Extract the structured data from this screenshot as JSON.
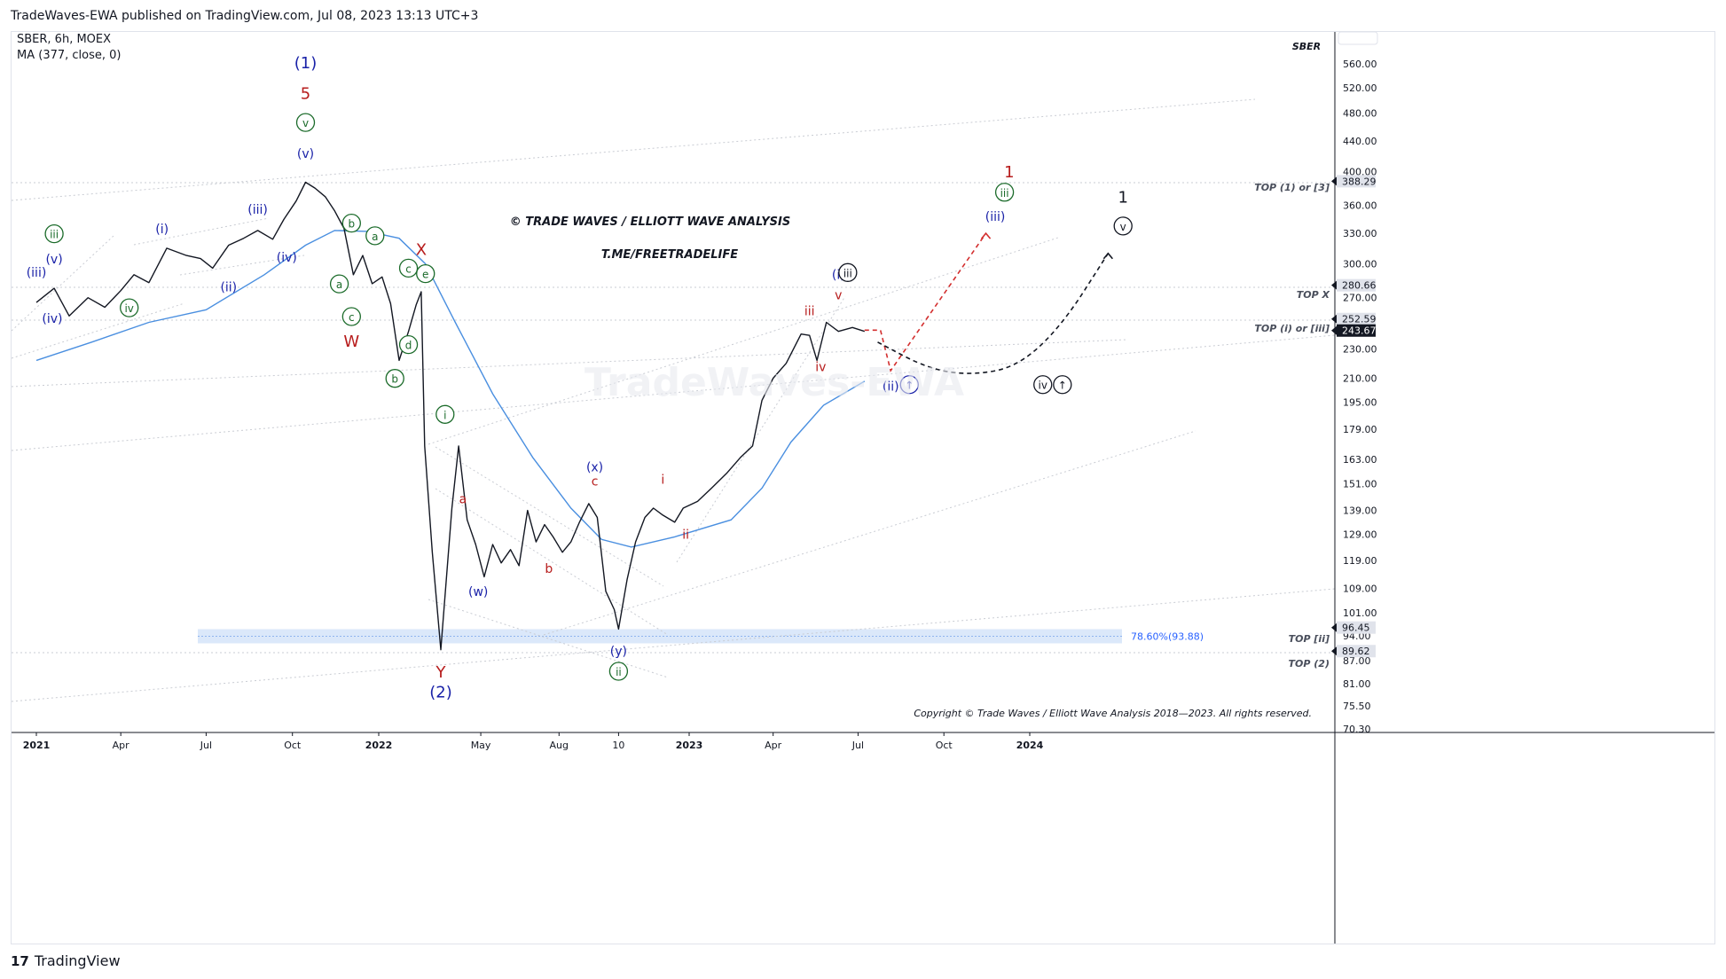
{
  "header": {
    "published": "TradeWaves-EWA published on TradingView.com, Jul 08, 2023 13:13 UTC+3"
  },
  "footer": {
    "brand": "TradingView",
    "logo": "17"
  },
  "legend": {
    "symbol": "SBER, 6h, MOEX",
    "ma": "MA (377, close, 0)",
    "corner": "SBER"
  },
  "watermark": {
    "title": "© TRADE WAVES / ELLIOTT WAVE ANALYSIS",
    "link": "T.ME/FREETRADELIFE",
    "faint": "TradeWaves-EWA"
  },
  "copyright": "Copyright © Trade Waves / Elliott Wave Analysis 2018—2023. All rights reserved.",
  "colors": {
    "blue": "#1a22a8",
    "green": "#1b6b2a",
    "red": "#b71c1c",
    "black": "#131722",
    "ma": "#4a8fe0",
    "grid": "#c9ccd3",
    "zone": "#cfe0f8"
  },
  "chart_data": {
    "type": "line",
    "title": "SBER, 6h, MOEX",
    "x_ticks": [
      "2021",
      "Apr",
      "Jul",
      "Oct",
      "2022",
      "May",
      "Aug",
      "10",
      "2023",
      "Apr",
      "Jul",
      "Oct",
      "2024"
    ],
    "y_ticks": [
      "560.00",
      "520.00",
      "480.00",
      "440.00",
      "400.00",
      "360.00",
      "330.00",
      "300.00",
      "270.00",
      "230.00",
      "210.00",
      "195.00",
      "179.00",
      "163.00",
      "151.00",
      "139.00",
      "129.00",
      "119.00",
      "109.00",
      "101.00",
      "94.00",
      "87.00",
      "81.00",
      "75.50",
      "70.30"
    ],
    "y_range": [
      70.3,
      600
    ],
    "price_tags": [
      {
        "value": "388.29",
        "price": 388.29,
        "style": "light"
      },
      {
        "value": "280.66",
        "price": 280.66,
        "style": "light"
      },
      {
        "value": "252.59",
        "price": 252.59,
        "style": "light"
      },
      {
        "value": "243.67",
        "price": 243.67,
        "style": "dark"
      },
      {
        "value": "96.45",
        "price": 96.45,
        "style": "light"
      },
      {
        "value": "89.62",
        "price": 89.62,
        "style": "light"
      }
    ],
    "level_labels": [
      {
        "text": "TOP (1) or [3]",
        "price": 380
      },
      {
        "text": "TOP X",
        "price": 272
      },
      {
        "text": "TOP (i) or [iii]",
        "price": 245
      },
      {
        "text": "TOP [ii]",
        "price": 93
      },
      {
        "text": "TOP (2)",
        "price": 86
      }
    ],
    "fib": {
      "label": "78.60%(93.88)",
      "price": 93.88
    },
    "price_series": {
      "name": "SBER",
      "points": [
        [
          "2021-01-01",
          266
        ],
        [
          "2021-01-20",
          278
        ],
        [
          "2021-02-05",
          255
        ],
        [
          "2021-02-25",
          270
        ],
        [
          "2021-03-15",
          262
        ],
        [
          "2021-04-01",
          276
        ],
        [
          "2021-04-15",
          290
        ],
        [
          "2021-05-01",
          283
        ],
        [
          "2021-05-20",
          315
        ],
        [
          "2021-06-10",
          308
        ],
        [
          "2021-06-25",
          305
        ],
        [
          "2021-07-08",
          296
        ],
        [
          "2021-07-25",
          318
        ],
        [
          "2021-08-10",
          325
        ],
        [
          "2021-08-25",
          333
        ],
        [
          "2021-09-10",
          324
        ],
        [
          "2021-09-22",
          345
        ],
        [
          "2021-10-05",
          365
        ],
        [
          "2021-10-15",
          387
        ],
        [
          "2021-10-25",
          380
        ],
        [
          "2021-11-05",
          370
        ],
        [
          "2021-11-15",
          354
        ],
        [
          "2021-11-25",
          335
        ],
        [
          "2021-12-05",
          290
        ],
        [
          "2021-12-15",
          308
        ],
        [
          "2021-12-25",
          282
        ],
        [
          "2022-01-05",
          288
        ],
        [
          "2022-01-15",
          265
        ],
        [
          "2022-01-25",
          222
        ],
        [
          "2022-02-05",
          243
        ],
        [
          "2022-02-14",
          264
        ],
        [
          "2022-02-20",
          275
        ],
        [
          "2022-02-24",
          170
        ],
        [
          "2022-03-05",
          122
        ],
        [
          "2022-03-15",
          90
        ],
        [
          "2022-03-28",
          140
        ],
        [
          "2022-04-05",
          170
        ],
        [
          "2022-04-15",
          135
        ],
        [
          "2022-04-25",
          125
        ],
        [
          "2022-05-05",
          113
        ],
        [
          "2022-05-15",
          125
        ],
        [
          "2022-05-25",
          118
        ],
        [
          "2022-06-05",
          123
        ],
        [
          "2022-06-15",
          117
        ],
        [
          "2022-06-25",
          139
        ],
        [
          "2022-07-05",
          126
        ],
        [
          "2022-07-15",
          133
        ],
        [
          "2022-07-25",
          128
        ],
        [
          "2022-08-05",
          122
        ],
        [
          "2022-08-15",
          126
        ],
        [
          "2022-08-25",
          134
        ],
        [
          "2022-09-05",
          142
        ],
        [
          "2022-09-15",
          136
        ],
        [
          "2022-09-25",
          108
        ],
        [
          "2022-10-05",
          102
        ],
        [
          "2022-10-10",
          96
        ],
        [
          "2022-10-20",
          112
        ],
        [
          "2022-10-30",
          126
        ],
        [
          "2022-11-10",
          136
        ],
        [
          "2022-11-20",
          140
        ],
        [
          "2022-12-01",
          137
        ],
        [
          "2022-12-15",
          134
        ],
        [
          "2022-12-25",
          140
        ],
        [
          "2023-01-10",
          143
        ],
        [
          "2023-01-25",
          149
        ],
        [
          "2023-02-10",
          156
        ],
        [
          "2023-02-25",
          164
        ],
        [
          "2023-03-10",
          170
        ],
        [
          "2023-03-20",
          196
        ],
        [
          "2023-04-01",
          210
        ],
        [
          "2023-04-15",
          220
        ],
        [
          "2023-05-01",
          241
        ],
        [
          "2023-05-10",
          240
        ],
        [
          "2023-05-18",
          222
        ],
        [
          "2023-05-28",
          250
        ],
        [
          "2023-06-10",
          243
        ],
        [
          "2023-06-25",
          246
        ],
        [
          "2023-07-08",
          243
        ]
      ]
    },
    "ma_series": {
      "name": "MA (377, close, 0)",
      "points": [
        [
          "2021-01-01",
          222
        ],
        [
          "2021-03-01",
          235
        ],
        [
          "2021-05-01",
          250
        ],
        [
          "2021-07-01",
          260
        ],
        [
          "2021-09-01",
          290
        ],
        [
          "2021-10-15",
          318
        ],
        [
          "2021-11-15",
          333
        ],
        [
          "2021-12-20",
          332
        ],
        [
          "2022-01-25",
          325
        ],
        [
          "2022-02-25",
          300
        ],
        [
          "2022-04-01",
          250
        ],
        [
          "2022-05-15",
          200
        ],
        [
          "2022-07-01",
          164
        ],
        [
          "2022-08-15",
          140
        ],
        [
          "2022-09-20",
          127
        ],
        [
          "2022-10-25",
          124
        ],
        [
          "2022-12-15",
          128
        ],
        [
          "2023-02-15",
          135
        ],
        [
          "2023-03-20",
          149
        ],
        [
          "2023-04-20",
          172
        ],
        [
          "2023-05-25",
          193
        ],
        [
          "2023-07-08",
          208
        ]
      ]
    },
    "projections": [
      {
        "name": "red-path",
        "color": "#d32f2f",
        "points": [
          [
            "2023-07-08",
            244
          ],
          [
            "2023-07-25",
            244
          ],
          [
            "2023-08-05",
            215
          ],
          [
            "2023-11-15",
            330
          ]
        ]
      },
      {
        "name": "black-path",
        "color": "#131722",
        "points": [
          [
            "2023-07-22",
            235
          ],
          [
            "2023-09-15",
            216
          ],
          [
            "2023-11-01",
            212
          ],
          [
            "2023-12-20",
            218
          ],
          [
            "2024-02-05",
            248
          ],
          [
            "2024-03-25",
            310
          ]
        ]
      }
    ],
    "wave_labels": [
      {
        "t": "(1)",
        "c": "blue",
        "d": "2021-10-15",
        "p": 555
      },
      {
        "t": "5",
        "c": "red",
        "d": "2021-10-15",
        "p": 505
      },
      {
        "t": "v",
        "c": "green",
        "d": "2021-10-15",
        "p": 460,
        "circle": true
      },
      {
        "t": "(v)",
        "c": "blue",
        "d": "2021-10-15",
        "p": 420
      },
      {
        "t": "(iii)",
        "c": "blue",
        "d": "2021-01-01",
        "p": 290
      },
      {
        "t": "iii",
        "c": "green",
        "d": "2021-01-20",
        "p": 325,
        "circle": true
      },
      {
        "t": "(v)",
        "c": "blue",
        "d": "2021-01-20",
        "p": 302
      },
      {
        "t": "(iv)",
        "c": "blue",
        "d": "2021-01-18",
        "p": 251
      },
      {
        "t": "iv",
        "c": "green",
        "d": "2021-04-10",
        "p": 258,
        "circle": true
      },
      {
        "t": "(i)",
        "c": "blue",
        "d": "2021-05-15",
        "p": 332
      },
      {
        "t": "(ii)",
        "c": "blue",
        "d": "2021-07-25",
        "p": 277
      },
      {
        "t": "(iii)",
        "c": "blue",
        "d": "2021-08-25",
        "p": 353
      },
      {
        "t": "(iv)",
        "c": "blue",
        "d": "2021-09-25",
        "p": 304
      },
      {
        "t": "b",
        "c": "green",
        "d": "2021-12-03",
        "p": 336,
        "circle": true
      },
      {
        "t": "a",
        "c": "green",
        "d": "2021-12-28",
        "p": 323,
        "circle": true
      },
      {
        "t": "a",
        "c": "green",
        "d": "2021-11-20",
        "p": 278,
        "circle": true
      },
      {
        "t": "c",
        "c": "green",
        "d": "2021-12-03",
        "p": 251,
        "circle": true
      },
      {
        "t": "W",
        "c": "red",
        "d": "2021-12-03",
        "p": 233
      },
      {
        "t": "X",
        "c": "red",
        "d": "2022-02-20",
        "p": 310
      },
      {
        "t": "c",
        "c": "green",
        "d": "2022-02-05",
        "p": 292,
        "circle": true
      },
      {
        "t": "e",
        "c": "green",
        "d": "2022-02-25",
        "p": 287,
        "circle": true
      },
      {
        "t": "d",
        "c": "green",
        "d": "2022-02-05",
        "p": 230,
        "circle": true
      },
      {
        "t": "b",
        "c": "green",
        "d": "2022-01-20",
        "p": 207,
        "circle": true
      },
      {
        "t": "i",
        "c": "green",
        "d": "2022-03-20",
        "p": 185,
        "circle": true
      },
      {
        "t": "a",
        "c": "red",
        "d": "2022-04-10",
        "p": 143
      },
      {
        "t": "(w)",
        "c": "blue",
        "d": "2022-04-28",
        "p": 107
      },
      {
        "t": "b",
        "c": "red",
        "d": "2022-07-20",
        "p": 115
      },
      {
        "t": "(x)",
        "c": "blue",
        "d": "2022-09-12",
        "p": 158
      },
      {
        "t": "c",
        "c": "red",
        "d": "2022-09-12",
        "p": 151
      },
      {
        "t": "Y",
        "c": "red",
        "d": "2022-03-15",
        "p": 83
      },
      {
        "t": "(2)",
        "c": "blue",
        "d": "2022-03-15",
        "p": 78
      },
      {
        "t": "(y)",
        "c": "blue",
        "d": "2022-10-10",
        "p": 89
      },
      {
        "t": "ii",
        "c": "green",
        "d": "2022-10-10",
        "p": 83,
        "circle": true
      },
      {
        "t": "i",
        "c": "red",
        "d": "2022-12-01",
        "p": 152
      },
      {
        "t": "ii",
        "c": "red",
        "d": "2022-12-28",
        "p": 128
      },
      {
        "t": "iii",
        "c": "red",
        "d": "2023-05-10",
        "p": 257
      },
      {
        "t": "v",
        "c": "red",
        "d": "2023-06-10",
        "p": 270
      },
      {
        "t": "iv",
        "c": "red",
        "d": "2023-05-22",
        "p": 216
      },
      {
        "t": "(i)",
        "c": "blue",
        "d": "2023-06-10",
        "p": 288
      },
      {
        "t": "iii",
        "c": "black",
        "d": "2023-06-20",
        "p": 288,
        "circle": true
      },
      {
        "t": "(ii)",
        "c": "blue",
        "d": "2023-08-05",
        "p": 203
      },
      {
        "t": "↑",
        "c": "blue",
        "d": "2023-08-25",
        "p": 203,
        "circle": true
      },
      {
        "t": "(iii)",
        "c": "blue",
        "d": "2023-11-25",
        "p": 345
      },
      {
        "t": "iii",
        "c": "green",
        "d": "2023-12-05",
        "p": 370,
        "circle": true
      },
      {
        "t": "1",
        "c": "red",
        "d": "2023-12-10",
        "p": 395
      },
      {
        "t": "1",
        "c": "black",
        "d": "2024-04-10",
        "p": 365
      },
      {
        "t": "v",
        "c": "black",
        "d": "2024-04-10",
        "p": 333,
        "circle": true
      },
      {
        "t": "iv",
        "c": "black",
        "d": "2024-01-15",
        "p": 203,
        "circle": true
      },
      {
        "t": "↑",
        "c": "black",
        "d": "2024-02-05",
        "p": 203,
        "circle": true
      }
    ]
  }
}
